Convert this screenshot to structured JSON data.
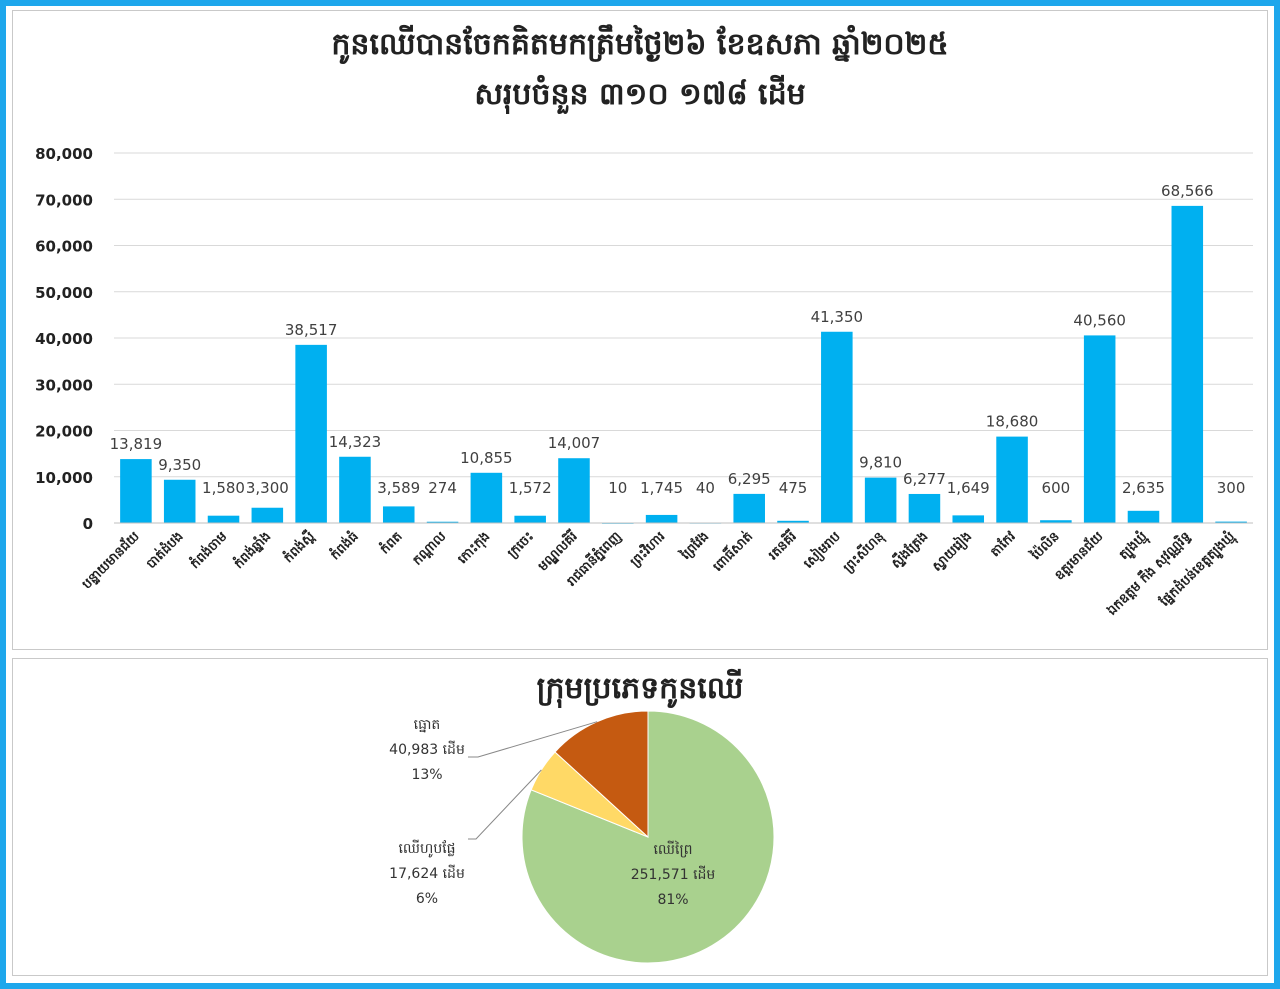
{
  "colors": {
    "border": "#1ea7ec",
    "bar": "#00b0f0",
    "grid": "#d9d9d9",
    "text": "#404040",
    "pie": [
      "#a9d18e",
      "#ffd966",
      "#c55a11"
    ]
  },
  "bar_chart": {
    "title_line1": "កូនឈើបានចែកគិតមកត្រឹមថ្ងៃ២៦ ខែឧសភា ឆ្នាំ២០២៥",
    "title_line2": "សរុបចំនួន ៣១០ ១៧៨ ដើម"
  },
  "pie_chart": {
    "title": "ក្រុមប្រភេទកូនឈើ"
  },
  "chart_data": [
    {
      "type": "bar",
      "title": "កូនឈើបានចែកគិតមកត្រឹមថ្ងៃ២៦ ខែឧសភា ឆ្នាំ២០២៥ សរុបចំនួន ៣១០ ១៧៨ ដើម",
      "categories": [
        "បន្ទាយមានជ័យ",
        "បាត់ដំបង",
        "កំពង់ចាម",
        "កំពង់ឆ្នាំង",
        "កំពង់ស្ពឺ",
        "កំពង់ធំ",
        "កំពត",
        "កណ្ដាល",
        "កោះកុង",
        "ក្រចេះ",
        "មណ្ឌលគិរី",
        "រាជធានីភ្នំពេញ",
        "ព្រះវិហារ",
        "ព្រៃវែង",
        "ពោធិ៍សាត់",
        "រតនគិរី",
        "សៀមរាប",
        "ព្រះសីហនុ",
        "ស្ទឹងត្រែង",
        "ស្វាយរៀង",
        "តាកែវ",
        "ប៉ៃលិន",
        "ឧត្ដរមានជ័យ",
        "ត្បូងឃ្មុំ",
        "ឯកឧត្តម កឹង សុវណ្ណរិទ្ធ",
        "ផ្នែកដំបន់ខេត្តត្បូងឃ្មុំ"
      ],
      "values": [
        13819,
        9350,
        1580,
        3300,
        38517,
        14323,
        3589,
        274,
        10855,
        1572,
        14007,
        10,
        1745,
        40,
        6295,
        475,
        41350,
        9810,
        6277,
        1649,
        18680,
        600,
        40560,
        2635,
        68566,
        300
      ],
      "data_labels": [
        "13,819",
        "9,350",
        "1,580",
        "3,300",
        "38,517",
        "14,323",
        "3,589",
        "274",
        "10,855",
        "1,572",
        "14,007",
        "10",
        "1,745",
        "40",
        "6,295",
        "475",
        "41,350",
        "9,810",
        "6,277",
        "1,649",
        "18,680",
        "600",
        "40,560",
        "2,635",
        "68,566",
        "300"
      ],
      "yticks": [
        "0",
        "10,000",
        "20,000",
        "30,000",
        "40,000",
        "50,000",
        "60,000",
        "70,000",
        "80,000"
      ],
      "ylim": [
        0,
        80000
      ],
      "grid": true
    },
    {
      "type": "pie",
      "title": "ក្រុមប្រភេទកូនឈើ",
      "slices": [
        {
          "name": "ឈើព្រៃ",
          "value": 251571,
          "value_label": "251,571 ដើម",
          "percent": "81%"
        },
        {
          "name": "ឈើហូបផ្លែ",
          "value": 17624,
          "value_label": "17,624 ដើម",
          "percent": "6%"
        },
        {
          "name": "ធ្នោត",
          "value": 40983,
          "value_label": "40,983 ដើម",
          "percent": "13%"
        }
      ]
    }
  ]
}
